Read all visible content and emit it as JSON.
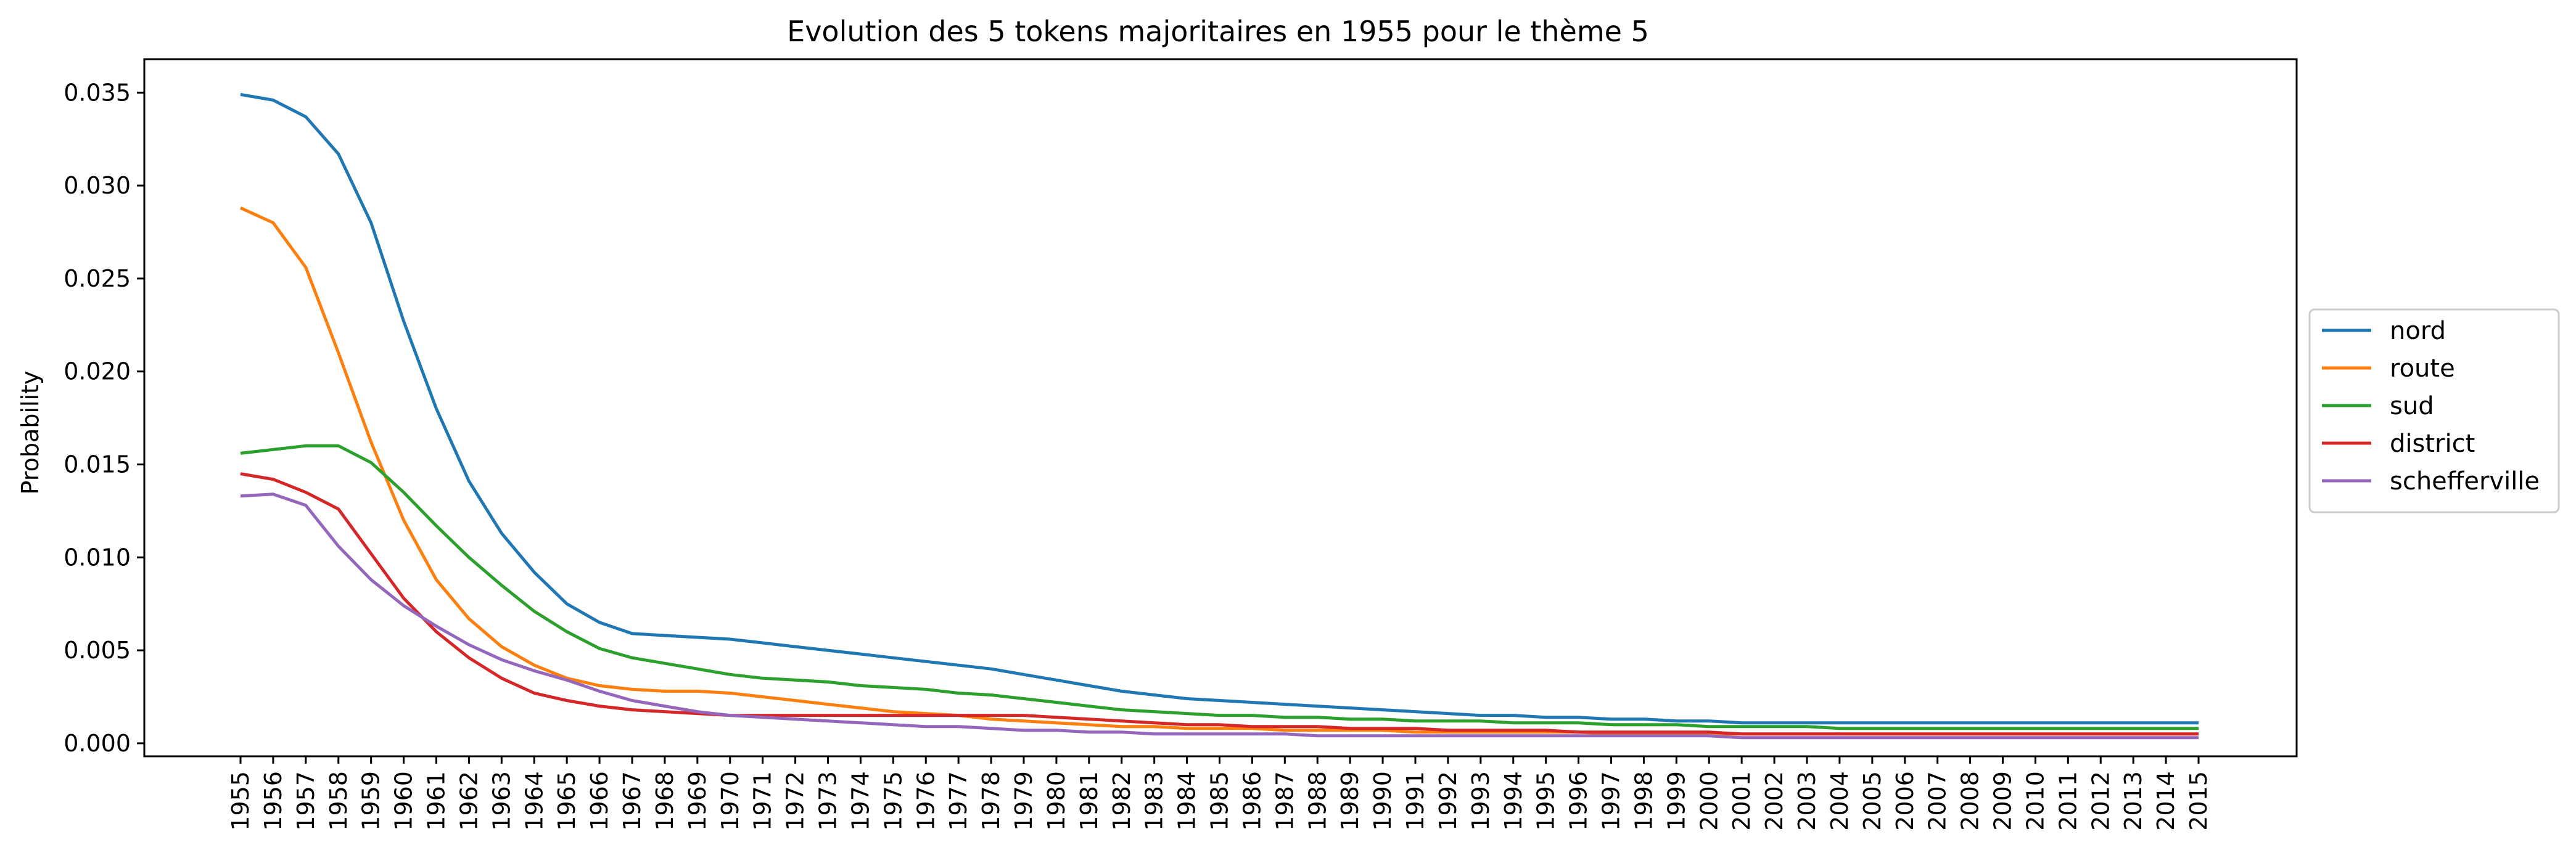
{
  "chart_data": {
    "type": "line",
    "title": "Evolution des 5 tokens majoritaires en 1955 pour le thème 5",
    "xlabel": "",
    "ylabel": "Probability",
    "ylim": [
      -0.0007,
      0.0368
    ],
    "yticks": [
      "0.000",
      "0.005",
      "0.010",
      "0.015",
      "0.020",
      "0.025",
      "0.030",
      "0.035"
    ],
    "ytick_values": [
      0,
      0.005,
      0.01,
      0.015,
      0.02,
      0.025,
      0.03,
      0.035
    ],
    "grid": false,
    "legend_position": "center-right-outside",
    "x": [
      "1955",
      "1956",
      "1957",
      "1958",
      "1959",
      "1960",
      "1961",
      "1962",
      "1963",
      "1964",
      "1965",
      "1966",
      "1967",
      "1968",
      "1969",
      "1970",
      "1971",
      "1972",
      "1973",
      "1974",
      "1975",
      "1976",
      "1977",
      "1978",
      "1979",
      "1980",
      "1981",
      "1982",
      "1983",
      "1984",
      "1985",
      "1986",
      "1987",
      "1988",
      "1989",
      "1990",
      "1991",
      "1992",
      "1993",
      "1994",
      "1995",
      "1996",
      "1997",
      "1998",
      "1999",
      "2000",
      "2001",
      "2002",
      "2003",
      "2004",
      "2005",
      "2006",
      "2007",
      "2008",
      "2009",
      "2010",
      "2011",
      "2012",
      "2013",
      "2014",
      "2015"
    ],
    "series": [
      {
        "name": "nord",
        "color": "#1f77b4",
        "values": [
          0.0349,
          0.0346,
          0.0337,
          0.0317,
          0.028,
          0.0227,
          0.018,
          0.0141,
          0.0113,
          0.0092,
          0.0075,
          0.0065,
          0.0059,
          0.0058,
          0.0057,
          0.0056,
          0.0054,
          0.0052,
          0.005,
          0.0048,
          0.0046,
          0.0044,
          0.0042,
          0.004,
          0.0037,
          0.0034,
          0.0031,
          0.0028,
          0.0026,
          0.0024,
          0.0023,
          0.0022,
          0.0021,
          0.002,
          0.0019,
          0.0018,
          0.0017,
          0.0016,
          0.0015,
          0.0015,
          0.0014,
          0.0014,
          0.0013,
          0.0013,
          0.0012,
          0.0012,
          0.0011,
          0.0011,
          0.0011,
          0.0011,
          0.0011,
          0.0011,
          0.0011,
          0.0011,
          0.0011,
          0.0011,
          0.0011,
          0.0011,
          0.0011,
          0.0011,
          0.0011
        ]
      },
      {
        "name": "route",
        "color": "#ff7f0e",
        "values": [
          0.0288,
          0.028,
          0.0256,
          0.021,
          0.0162,
          0.012,
          0.0088,
          0.0067,
          0.0052,
          0.0042,
          0.0035,
          0.0031,
          0.0029,
          0.0028,
          0.0028,
          0.0027,
          0.0025,
          0.0023,
          0.0021,
          0.0019,
          0.0017,
          0.0016,
          0.0015,
          0.0013,
          0.0012,
          0.0011,
          0.001,
          0.0009,
          0.0009,
          0.0008,
          0.0008,
          0.0008,
          0.0007,
          0.0007,
          0.0007,
          0.0007,
          0.0006,
          0.0006,
          0.0006,
          0.0006,
          0.0006,
          0.0006,
          0.0005,
          0.0005,
          0.0005,
          0.0005,
          0.0005,
          0.0005,
          0.0005,
          0.0005,
          0.0005,
          0.0005,
          0.0005,
          0.0005,
          0.0005,
          0.0005,
          0.0005,
          0.0005,
          0.0005,
          0.0005,
          0.0005
        ]
      },
      {
        "name": "sud",
        "color": "#2ca02c",
        "values": [
          0.0156,
          0.0158,
          0.016,
          0.016,
          0.0151,
          0.0135,
          0.0117,
          0.01,
          0.0085,
          0.0071,
          0.006,
          0.0051,
          0.0046,
          0.0043,
          0.004,
          0.0037,
          0.0035,
          0.0034,
          0.0033,
          0.0031,
          0.003,
          0.0029,
          0.0027,
          0.0026,
          0.0024,
          0.0022,
          0.002,
          0.0018,
          0.0017,
          0.0016,
          0.0015,
          0.0015,
          0.0014,
          0.0014,
          0.0013,
          0.0013,
          0.0012,
          0.0012,
          0.0012,
          0.0011,
          0.0011,
          0.0011,
          0.001,
          0.001,
          0.001,
          0.0009,
          0.0009,
          0.0009,
          0.0009,
          0.0008,
          0.0008,
          0.0008,
          0.0008,
          0.0008,
          0.0008,
          0.0008,
          0.0008,
          0.0008,
          0.0008,
          0.0008,
          0.0008
        ]
      },
      {
        "name": "district",
        "color": "#d62728",
        "values": [
          0.0145,
          0.0142,
          0.0135,
          0.0126,
          0.0102,
          0.0078,
          0.006,
          0.0046,
          0.0035,
          0.0027,
          0.0023,
          0.002,
          0.0018,
          0.0017,
          0.0016,
          0.0015,
          0.0015,
          0.0015,
          0.0015,
          0.0015,
          0.0015,
          0.0015,
          0.0015,
          0.0015,
          0.0015,
          0.0014,
          0.0013,
          0.0012,
          0.0011,
          0.001,
          0.001,
          0.0009,
          0.0009,
          0.0009,
          0.0008,
          0.0008,
          0.0008,
          0.0007,
          0.0007,
          0.0007,
          0.0007,
          0.0006,
          0.0006,
          0.0006,
          0.0006,
          0.0006,
          0.0005,
          0.0005,
          0.0005,
          0.0005,
          0.0005,
          0.0005,
          0.0005,
          0.0005,
          0.0005,
          0.0005,
          0.0005,
          0.0005,
          0.0005,
          0.0005,
          0.0005
        ]
      },
      {
        "name": "schefferville",
        "color": "#9467bd",
        "values": [
          0.0133,
          0.0134,
          0.0128,
          0.0106,
          0.0088,
          0.0074,
          0.0063,
          0.0053,
          0.0045,
          0.0039,
          0.0034,
          0.0028,
          0.0023,
          0.002,
          0.0017,
          0.0015,
          0.0014,
          0.0013,
          0.0012,
          0.0011,
          0.001,
          0.0009,
          0.0009,
          0.0008,
          0.0007,
          0.0007,
          0.0006,
          0.0006,
          0.0005,
          0.0005,
          0.0005,
          0.0005,
          0.0005,
          0.0004,
          0.0004,
          0.0004,
          0.0004,
          0.0004,
          0.0004,
          0.0004,
          0.0004,
          0.0004,
          0.0004,
          0.0004,
          0.0004,
          0.0004,
          0.0003,
          0.0003,
          0.0003,
          0.0003,
          0.0003,
          0.0003,
          0.0003,
          0.0003,
          0.0003,
          0.0003,
          0.0003,
          0.0003,
          0.0003,
          0.0003,
          0.0003
        ]
      }
    ]
  }
}
